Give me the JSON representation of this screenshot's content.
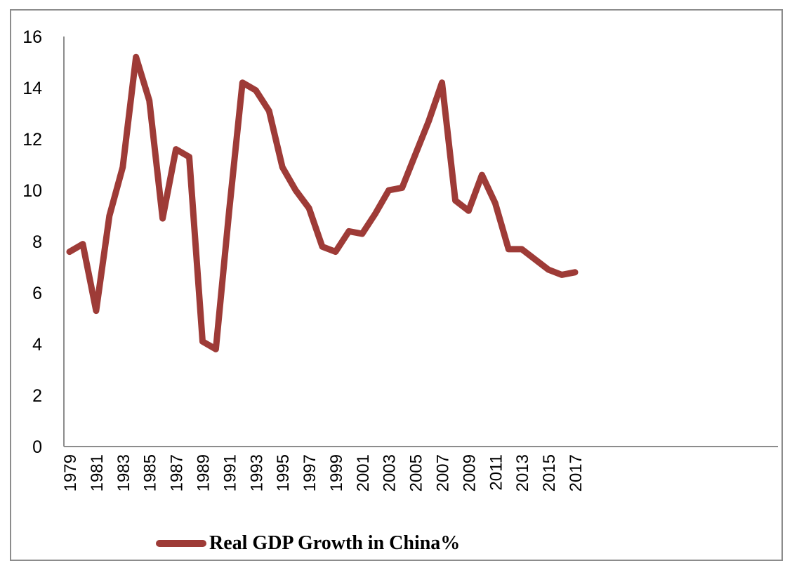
{
  "colors": {
    "series": "#9e3b37",
    "axis": "#8c8c8c"
  },
  "chart_data": {
    "type": "line",
    "title": "",
    "xlabel": "",
    "ylabel": "",
    "ylim": [
      0,
      16
    ],
    "yticks": [
      0,
      2,
      4,
      6,
      8,
      10,
      12,
      14,
      16
    ],
    "xlim": [
      1979,
      2017
    ],
    "x_tick_labels": [
      "1979",
      "1981",
      "1983",
      "1985",
      "1987",
      "1989",
      "1991",
      "1993",
      "1995",
      "1997",
      "1999",
      "2001",
      "2003",
      "2005",
      "2007",
      "2009",
      "2011",
      "2013",
      "2015",
      "2017"
    ],
    "legend_position": "bottom",
    "grid": false,
    "series": [
      {
        "name": "Real GDP Growth in China%",
        "x": [
          1979,
          1980,
          1981,
          1982,
          1983,
          1984,
          1985,
          1986,
          1987,
          1988,
          1989,
          1990,
          1991,
          1992,
          1993,
          1994,
          1995,
          1996,
          1997,
          1998,
          1999,
          2000,
          2001,
          2002,
          2003,
          2004,
          2005,
          2006,
          2007,
          2008,
          2009,
          2010,
          2011,
          2012,
          2013,
          2014,
          2015,
          2016,
          2017
        ],
        "values": [
          7.6,
          7.9,
          5.3,
          9.0,
          10.9,
          15.2,
          13.5,
          8.9,
          11.6,
          11.3,
          4.1,
          3.8,
          9.2,
          14.2,
          13.9,
          13.1,
          10.9,
          10.0,
          9.3,
          7.8,
          7.6,
          8.4,
          8.3,
          9.1,
          10.0,
          10.1,
          11.4,
          12.7,
          14.2,
          9.6,
          9.2,
          10.6,
          9.5,
          7.7,
          7.7,
          7.3,
          6.9,
          6.7,
          6.8
        ]
      }
    ]
  }
}
